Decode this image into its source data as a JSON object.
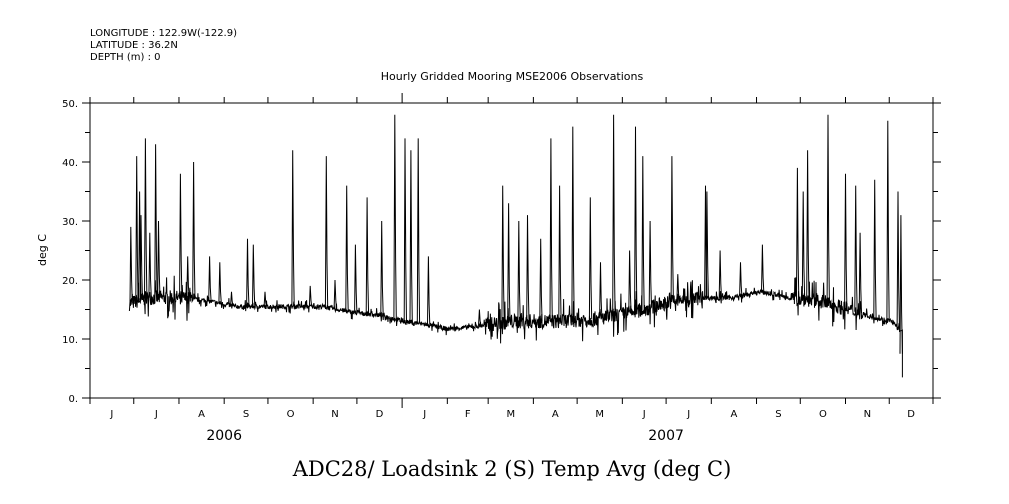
{
  "header": {
    "longitude": "LONGITUDE : 122.9W(-122.9)",
    "latitude": "LATITUDE : 36.2N",
    "depth": "DEPTH (m) : 0"
  },
  "chart_data": {
    "type": "line",
    "title": "Hourly Gridded Mooring MSE2006 Observations",
    "xlabel": "ADC28/ Loadsink 2 (S) Temp Avg (deg C)",
    "ylabel": "deg C",
    "x_units": "days since 2006-06-01",
    "xlim": [
      0,
      578
    ],
    "ylim": [
      0,
      50
    ],
    "yticks": [
      0,
      10,
      20,
      30,
      40,
      50
    ],
    "ytick_labels": [
      "0.",
      "10.",
      "20.",
      "30.",
      "40.",
      "50."
    ],
    "month_labels": [
      "J",
      "J",
      "A",
      "S",
      "O",
      "N",
      "D",
      "J",
      "F",
      "M",
      "A",
      "M",
      "J",
      "J",
      "A",
      "S",
      "O",
      "N",
      "D"
    ],
    "month_starts": [
      0,
      30,
      61,
      92,
      122,
      153,
      183,
      214,
      245,
      273,
      304,
      334,
      365,
      395,
      426,
      457,
      487,
      518,
      548,
      578
    ],
    "year_labels": [
      {
        "label": "2006",
        "center_day": 92
      },
      {
        "label": "2007",
        "center_day": 395
      }
    ],
    "grid": false,
    "line_color": "#000000",
    "baseline": [
      [
        27,
        16
      ],
      [
        40,
        17
      ],
      [
        60,
        17
      ],
      [
        80,
        16.5
      ],
      [
        100,
        15.5
      ],
      [
        120,
        15.5
      ],
      [
        140,
        15.5
      ],
      [
        160,
        15.5
      ],
      [
        180,
        14.5
      ],
      [
        200,
        14
      ],
      [
        215,
        13
      ],
      [
        230,
        12.5
      ],
      [
        245,
        11.7
      ],
      [
        260,
        12
      ],
      [
        275,
        12.5
      ],
      [
        290,
        13
      ],
      [
        320,
        13
      ],
      [
        350,
        13.5
      ],
      [
        380,
        15
      ],
      [
        400,
        16.5
      ],
      [
        420,
        17
      ],
      [
        440,
        17
      ],
      [
        460,
        18
      ],
      [
        480,
        17
      ],
      [
        500,
        16.5
      ],
      [
        520,
        15
      ],
      [
        540,
        13.5
      ],
      [
        550,
        13
      ],
      [
        553,
        12
      ],
      [
        555,
        11.5
      ],
      [
        557,
        3.5
      ]
    ],
    "spikes": [
      [
        28,
        29
      ],
      [
        32,
        41
      ],
      [
        34,
        35
      ],
      [
        35,
        31
      ],
      [
        38,
        44
      ],
      [
        41,
        28
      ],
      [
        45,
        43
      ],
      [
        47,
        30
      ],
      [
        62,
        38
      ],
      [
        67,
        24
      ],
      [
        71,
        40
      ],
      [
        82,
        24
      ],
      [
        89,
        23
      ],
      [
        97,
        18
      ],
      [
        108,
        27
      ],
      [
        112,
        26
      ],
      [
        120,
        18
      ],
      [
        139,
        42
      ],
      [
        151,
        19
      ],
      [
        162,
        41
      ],
      [
        168,
        20
      ],
      [
        176,
        36
      ],
      [
        182,
        26
      ],
      [
        190,
        34
      ],
      [
        200,
        30
      ],
      [
        209,
        48
      ],
      [
        216,
        44
      ],
      [
        220,
        42
      ],
      [
        225,
        44
      ],
      [
        232,
        24
      ],
      [
        267,
        15
      ],
      [
        283,
        36
      ],
      [
        287,
        33
      ],
      [
        294,
        30
      ],
      [
        300,
        31
      ],
      [
        309,
        27
      ],
      [
        316,
        44
      ],
      [
        322,
        36
      ],
      [
        331,
        46
      ],
      [
        343,
        34
      ],
      [
        350,
        23
      ],
      [
        359,
        48
      ],
      [
        370,
        25
      ],
      [
        374,
        46
      ],
      [
        379,
        41
      ],
      [
        384,
        30
      ],
      [
        399,
        41
      ],
      [
        403,
        21
      ],
      [
        422,
        36
      ],
      [
        423,
        35
      ],
      [
        432,
        25
      ],
      [
        446,
        23
      ],
      [
        461,
        26
      ],
      [
        485,
        39
      ],
      [
        489,
        35
      ],
      [
        492,
        42
      ],
      [
        506,
        48
      ],
      [
        518,
        38
      ],
      [
        525,
        36
      ],
      [
        528,
        28
      ],
      [
        538,
        37
      ],
      [
        547,
        47
      ],
      [
        554,
        35
      ],
      [
        556,
        31
      ]
    ]
  }
}
